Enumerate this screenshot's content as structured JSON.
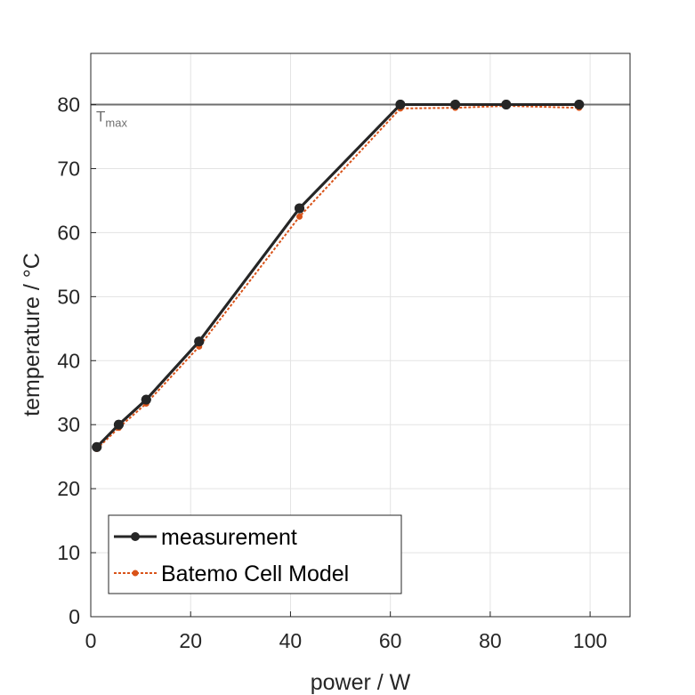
{
  "chart_data": {
    "type": "line",
    "xlabel": "power / W",
    "ylabel": "temperature / °C",
    "xlim": [
      0,
      108
    ],
    "ylim": [
      0,
      88
    ],
    "xticks": [
      0,
      20,
      40,
      60,
      80,
      100
    ],
    "yticks": [
      0,
      10,
      20,
      30,
      40,
      50,
      60,
      70,
      80
    ],
    "grid": true,
    "legend_position": "bottom-left",
    "reference_line": {
      "y": 80,
      "label_main": "T",
      "label_sub": "max",
      "color": "#6e6e6e"
    },
    "series": [
      {
        "name": "measurement",
        "color": "#262626",
        "style": "solid-marker",
        "x": [
          1.2,
          5.6,
          11.1,
          21.7,
          41.8,
          62.0,
          73.0,
          83.2,
          97.8
        ],
        "y": [
          26.5,
          30.0,
          33.9,
          43.0,
          63.8,
          80.0,
          80.0,
          80.0,
          80.0
        ]
      },
      {
        "name": "Batemo Cell Model",
        "color": "#d95319",
        "style": "dotted-marker",
        "x": [
          1.2,
          5.6,
          11.1,
          21.7,
          41.8,
          62.0,
          73.0,
          83.2,
          97.8
        ],
        "y": [
          26.2,
          29.5,
          33.3,
          42.2,
          62.5,
          79.4,
          79.5,
          79.8,
          79.5
        ]
      }
    ]
  }
}
